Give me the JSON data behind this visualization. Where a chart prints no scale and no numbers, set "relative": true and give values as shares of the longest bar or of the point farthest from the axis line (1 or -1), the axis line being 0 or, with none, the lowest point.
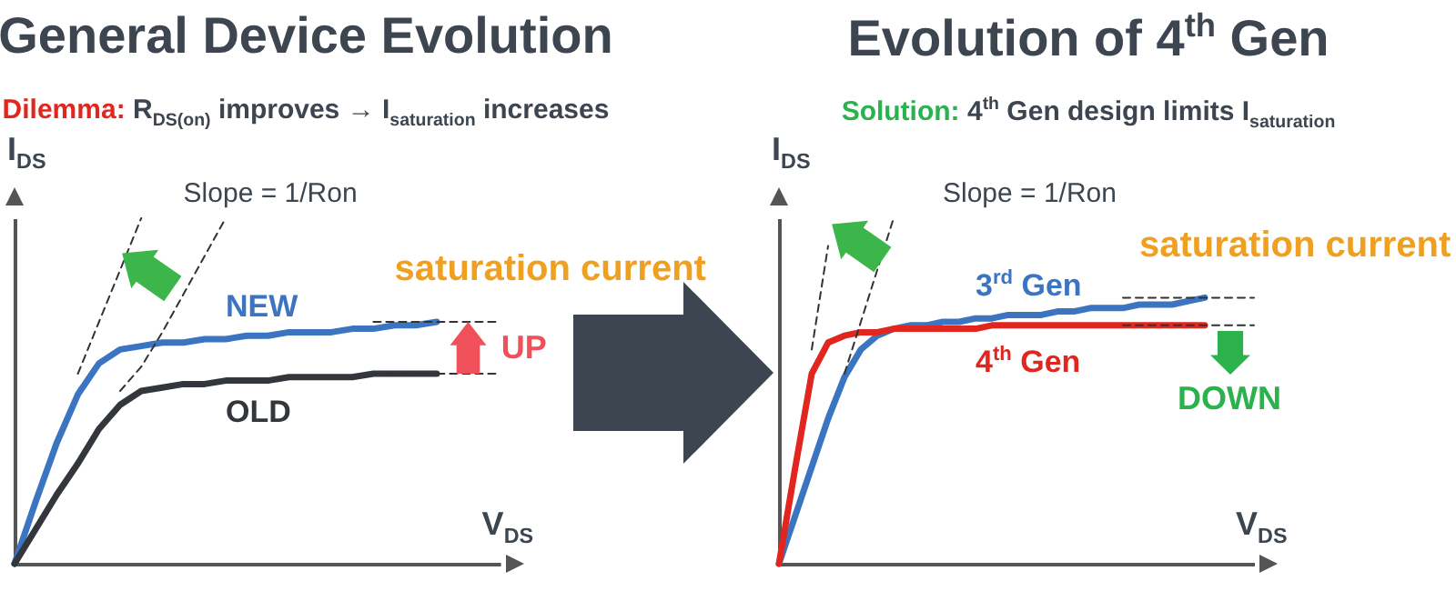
{
  "chart_data": [
    {
      "type": "line",
      "title": "General Device Evolution",
      "subtitle": "Dilemma: R$_{DS(on)}$ improves → I$_{saturation}$ increases",
      "xlabel": "V$_{DS}$",
      "ylabel": "I$_{DS}$",
      "relative": true,
      "categories": [
        null,
        null,
        null,
        null,
        null,
        null,
        null,
        null,
        null,
        null,
        null,
        null,
        null,
        null,
        null,
        null,
        null,
        null,
        null,
        null,
        null,
        null,
        null,
        null
      ],
      "series": [
        {
          "name": "NEW",
          "color": "#3b74c1",
          "values": [
            0,
            0.18,
            0.35,
            0.49,
            0.58,
            0.62,
            0.63,
            0.64,
            0.64,
            0.65,
            0.65,
            0.66,
            0.66,
            0.67,
            0.67,
            0.67,
            0.68,
            0.68,
            0.69,
            0.69,
            0.7,
            null,
            null,
            null
          ]
        },
        {
          "name": "OLD",
          "color": "#33373b",
          "values": [
            0,
            0.1,
            0.2,
            0.29,
            0.39,
            0.46,
            0.5,
            0.51,
            0.52,
            0.52,
            0.53,
            0.53,
            0.53,
            0.54,
            0.54,
            0.54,
            0.54,
            0.55,
            0.55,
            0.55,
            0.55,
            null,
            null,
            null
          ]
        },
        {
          "color": "#333333",
          "line_style": "dashed",
          "values": [
            null,
            null,
            null,
            0.55,
            0.7,
            0.85,
            1,
            null,
            null,
            null,
            null,
            null,
            null,
            null,
            null,
            null,
            null,
            null,
            null,
            null,
            null,
            null,
            null,
            null
          ]
        },
        {
          "color": "#333333",
          "line_style": "dashed",
          "values": [
            null,
            null,
            null,
            null,
            null,
            0.5,
            0.57,
            0.67,
            0.78,
            0.89,
            1,
            null,
            null,
            null,
            null,
            null,
            null,
            null,
            null,
            null,
            null,
            null,
            null,
            null
          ]
        },
        {
          "color": "#333333",
          "line_style": "dashed",
          "values": [
            null,
            null,
            null,
            null,
            null,
            null,
            null,
            null,
            null,
            null,
            null,
            null,
            null,
            null,
            null,
            null,
            null,
            0.7,
            0.7,
            0.7,
            0.7,
            0.7,
            0.7,
            0.7
          ]
        },
        {
          "color": "#333333",
          "line_style": "dashed",
          "values": [
            null,
            null,
            null,
            null,
            null,
            null,
            null,
            null,
            null,
            null,
            null,
            null,
            null,
            null,
            null,
            null,
            null,
            0.55,
            0.55,
            0.55,
            0.55,
            0.55,
            0.55,
            0.55
          ]
        }
      ],
      "annotations": [
        "Slope = 1/Ron",
        "saturation current",
        "UP"
      ]
    },
    {
      "type": "line",
      "title": "Evolution of 4$^{th}$ Gen",
      "subtitle": "Solution: 4$^{th}$ Gen design limits I$_{saturation}$",
      "xlabel": "V$_{DS}$",
      "ylabel": "I$_{DS}$",
      "relative": true,
      "categories": [
        null,
        null,
        null,
        null,
        null,
        null,
        null,
        null,
        null,
        null,
        null,
        null,
        null,
        null,
        null,
        null,
        null,
        null,
        null,
        null,
        null,
        null,
        null,
        null,
        null,
        null,
        null,
        null,
        null,
        null
      ],
      "series": [
        {
          "name": "3$^{rd}$ Gen",
          "color": "#3b74c1",
          "values": [
            0,
            0.14,
            0.28,
            0.42,
            0.54,
            0.62,
            0.66,
            0.68,
            0.69,
            0.69,
            0.7,
            0.7,
            0.71,
            0.71,
            0.72,
            0.72,
            0.72,
            0.73,
            0.73,
            0.74,
            0.74,
            0.74,
            0.75,
            0.75,
            0.75,
            0.76,
            0.77,
            null,
            null,
            null
          ]
        },
        {
          "name": "4$^{th}$ Gen",
          "color": "#e0261f",
          "values": [
            0,
            0.28,
            0.55,
            0.64,
            0.66,
            0.67,
            0.67,
            0.68,
            0.68,
            0.68,
            0.68,
            0.68,
            0.68,
            0.69,
            0.69,
            0.69,
            0.69,
            0.69,
            0.69,
            0.69,
            0.69,
            0.69,
            0.69,
            0.69,
            0.69,
            0.69,
            0.69,
            null,
            null,
            null
          ]
        },
        {
          "color": "#333333",
          "line_style": "dashed",
          "values": [
            null,
            null,
            0.62,
            0.92,
            null,
            null,
            null,
            null,
            null,
            null,
            null,
            null,
            null,
            null,
            null,
            null,
            null,
            null,
            null,
            null,
            null,
            null,
            null,
            null,
            null,
            null,
            null,
            null,
            null,
            null
          ]
        },
        {
          "color": "#333333",
          "line_style": "dashed",
          "values": [
            null,
            null,
            null,
            null,
            0.55,
            0.7,
            0.85,
            1,
            null,
            null,
            null,
            null,
            null,
            null,
            null,
            null,
            null,
            null,
            null,
            null,
            null,
            null,
            null,
            null,
            null,
            null,
            null,
            null,
            null,
            null
          ]
        },
        {
          "color": "#333333",
          "line_style": "dashed",
          "values": [
            null,
            null,
            null,
            null,
            null,
            null,
            null,
            null,
            null,
            null,
            null,
            null,
            null,
            null,
            null,
            null,
            null,
            null,
            null,
            null,
            null,
            0.77,
            0.77,
            0.77,
            0.77,
            0.77,
            0.77,
            0.77,
            0.77,
            0.77
          ]
        },
        {
          "color": "#333333",
          "line_style": "dashed",
          "values": [
            null,
            null,
            null,
            null,
            null,
            null,
            null,
            null,
            null,
            null,
            null,
            null,
            null,
            null,
            null,
            null,
            null,
            null,
            null,
            null,
            null,
            0.69,
            0.69,
            0.69,
            0.69,
            0.69,
            0.69,
            0.69,
            0.69,
            0.69
          ]
        }
      ],
      "annotations": [
        "Slope = 1/Ron",
        "saturation current",
        "DOWN"
      ]
    }
  ]
}
